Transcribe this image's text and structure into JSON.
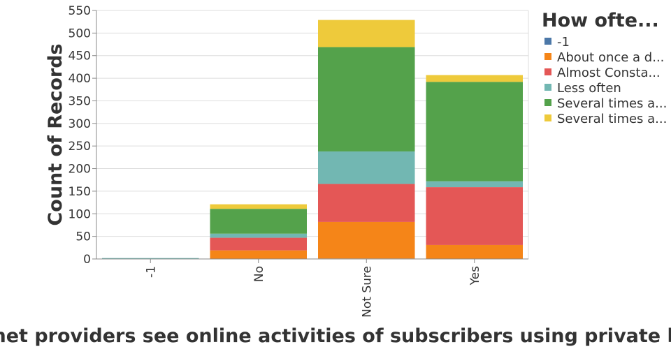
{
  "chart_data": {
    "type": "bar",
    "stacked": true,
    "title": "Can internet providers see online activities of subscribers using private browsing?",
    "xlabel": "",
    "ylabel": "Count of Records",
    "ylim": [
      0,
      550
    ],
    "yticks": [
      0,
      50,
      100,
      150,
      200,
      250,
      300,
      350,
      400,
      450,
      500,
      550
    ],
    "grid": true,
    "legend_placement": "right",
    "legend_title": "How ofte...",
    "categories": [
      "-1",
      "No",
      "Not Sure",
      "Yes"
    ],
    "series": [
      {
        "name": "-1",
        "label": "-1",
        "color": "#4c78a8",
        "values": [
          0,
          0,
          1,
          0
        ]
      },
      {
        "name": "About once a day",
        "label": "About once a d...",
        "color": "#f58518",
        "values": [
          0,
          19,
          81,
          31
        ]
      },
      {
        "name": "Almost Constantly",
        "label": "Almost Consta...",
        "color": "#e45756",
        "values": [
          0,
          28,
          84,
          128
        ]
      },
      {
        "name": "Less often",
        "label": "Less often",
        "color": "#72b7b2",
        "values": [
          2,
          9,
          72,
          13
        ]
      },
      {
        "name": "Several times a day",
        "label": "Several times a...",
        "color": "#54a24b",
        "values": [
          0,
          55,
          231,
          220
        ]
      },
      {
        "name": "Several times a week",
        "label": "Several times a...",
        "color": "#eeca3b",
        "values": [
          0,
          10,
          60,
          15
        ]
      }
    ]
  }
}
